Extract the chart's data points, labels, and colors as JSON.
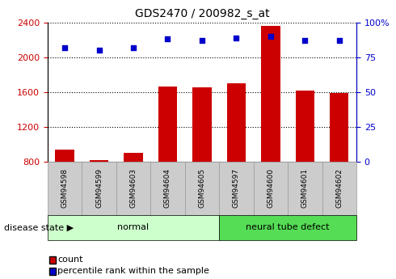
{
  "title": "GDS2470 / 200982_s_at",
  "samples": [
    "GSM94598",
    "GSM94599",
    "GSM94603",
    "GSM94604",
    "GSM94605",
    "GSM94597",
    "GSM94600",
    "GSM94601",
    "GSM94602"
  ],
  "counts": [
    940,
    820,
    900,
    1660,
    1650,
    1700,
    2360,
    1620,
    1590
  ],
  "percentiles": [
    82,
    80,
    82,
    88,
    87,
    89,
    90,
    87,
    87
  ],
  "groups": [
    "normal",
    "normal",
    "normal",
    "normal",
    "normal",
    "neural tube defect",
    "neural tube defect",
    "neural tube defect",
    "neural tube defect"
  ],
  "group_colors": {
    "normal": "#ccffcc",
    "neural tube defect": "#55dd55"
  },
  "bar_color": "#cc0000",
  "dot_color": "#0000cc",
  "ylim_left": [
    800,
    2400
  ],
  "ylim_right": [
    0,
    100
  ],
  "yticks_left": [
    800,
    1200,
    1600,
    2000,
    2400
  ],
  "yticks_right": [
    0,
    25,
    50,
    75,
    100
  ],
  "left_tick_color": "#cc0000",
  "right_tick_color": "#0000cc",
  "bar_width": 0.55,
  "legend_count_label": "count",
  "legend_pct_label": "percentile rank within the sample",
  "disease_state_label": "disease state",
  "normal_label": "normal",
  "defect_label": "neural tube defect",
  "tick_label_bg": "#cccccc",
  "tick_label_edge": "#999999"
}
